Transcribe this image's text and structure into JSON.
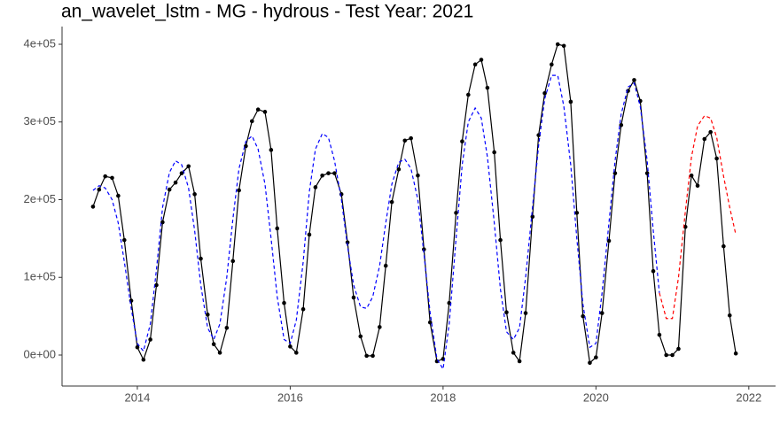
{
  "chart_data": {
    "type": "line",
    "title": "an_wavelet_lstm - MG - hydrous - Test Year: 2021",
    "x": [
      2013.42,
      2013.5,
      2013.58,
      2013.67,
      2013.75,
      2013.83,
      2013.92,
      2014.0,
      2014.08,
      2014.17,
      2014.25,
      2014.33,
      2014.42,
      2014.5,
      2014.58,
      2014.67,
      2014.75,
      2014.83,
      2014.92,
      2015.0,
      2015.08,
      2015.17,
      2015.25,
      2015.33,
      2015.42,
      2015.5,
      2015.58,
      2015.67,
      2015.75,
      2015.83,
      2015.92,
      2016.0,
      2016.08,
      2016.17,
      2016.25,
      2016.33,
      2016.42,
      2016.5,
      2016.58,
      2016.67,
      2016.75,
      2016.83,
      2016.92,
      2017.0,
      2017.08,
      2017.17,
      2017.25,
      2017.33,
      2017.42,
      2017.5,
      2017.58,
      2017.67,
      2017.75,
      2017.83,
      2017.92,
      2018.0,
      2018.08,
      2018.17,
      2018.25,
      2018.33,
      2018.42,
      2018.5,
      2018.58,
      2018.67,
      2018.75,
      2018.83,
      2018.92,
      2019.0,
      2019.08,
      2019.17,
      2019.25,
      2019.33,
      2019.42,
      2019.5,
      2019.58,
      2019.67,
      2019.75,
      2019.83,
      2019.92,
      2020.0,
      2020.08,
      2020.17,
      2020.25,
      2020.33,
      2020.42,
      2020.5,
      2020.58,
      2020.67,
      2020.75,
      2020.83,
      2020.92,
      2021.0,
      2021.08,
      2021.17,
      2021.25,
      2021.33,
      2021.42,
      2021.5,
      2021.58,
      2021.67,
      2021.75,
      2021.83
    ],
    "series": [
      {
        "color": "#000000",
        "linestyle": "solid",
        "markers": true,
        "values": [
          191000,
          213000,
          230000,
          228000,
          205000,
          148000,
          70000,
          10000,
          -6000,
          20000,
          90000,
          171000,
          213000,
          222000,
          234000,
          243000,
          207000,
          124000,
          52000,
          14000,
          3000,
          35000,
          121000,
          212000,
          269000,
          301000,
          316000,
          313000,
          264000,
          163000,
          67000,
          11000,
          3000,
          59000,
          155000,
          216000,
          231000,
          234000,
          234000,
          207000,
          145000,
          74000,
          24000,
          -1000,
          -1000,
          36000,
          115000,
          197000,
          239000,
          276000,
          279000,
          231000,
          136000,
          42000,
          -8000,
          -5000,
          67000,
          183000,
          275000,
          335000,
          374000,
          380000,
          344000,
          261000,
          148000,
          55000,
          3000,
          -8000,
          54000,
          178000,
          283000,
          337000,
          374000,
          400000,
          398000,
          326000,
          183000,
          50000,
          -10000,
          -3000,
          54000,
          147000,
          234000,
          296000,
          340000,
          354000,
          327000,
          234000,
          108000,
          26000,
          0,
          0,
          8000,
          165000,
          231000,
          218000,
          278000,
          287000,
          253000,
          140000,
          51000,
          2000
        ]
      },
      {
        "color": "#0000ff",
        "linestyle": "dashed",
        "markers": false,
        "values": [
          212000,
          218000,
          215000,
          200000,
          170000,
          120000,
          60000,
          15000,
          5000,
          40000,
          110000,
          190000,
          235000,
          250000,
          245000,
          215000,
          160000,
          90000,
          35000,
          20000,
          40000,
          100000,
          175000,
          240000,
          275000,
          282000,
          265000,
          220000,
          150000,
          75000,
          20000,
          15000,
          45000,
          120000,
          210000,
          265000,
          285000,
          280000,
          250000,
          200000,
          140000,
          90000,
          62000,
          60000,
          75000,
          115000,
          170000,
          220000,
          248000,
          252000,
          240000,
          200000,
          130000,
          55000,
          -5000,
          -18000,
          40000,
          150000,
          245000,
          300000,
          318000,
          305000,
          255000,
          170000,
          85000,
          30000,
          20000,
          35000,
          100000,
          190000,
          270000,
          330000,
          360000,
          360000,
          320000,
          245000,
          150000,
          65000,
          10000,
          15000,
          80000,
          170000,
          250000,
          310000,
          345000,
          350000,
          320000,
          250000,
          160000,
          80000,
          null,
          null,
          null,
          null,
          null,
          null,
          null,
          null,
          null,
          null,
          null,
          null
        ]
      },
      {
        "color": "#ff0000",
        "linestyle": "dashed",
        "markers": false,
        "values": [
          null,
          null,
          null,
          null,
          null,
          null,
          null,
          null,
          null,
          null,
          null,
          null,
          null,
          null,
          null,
          null,
          null,
          null,
          null,
          null,
          null,
          null,
          null,
          null,
          null,
          null,
          null,
          null,
          null,
          null,
          null,
          null,
          null,
          null,
          null,
          null,
          null,
          null,
          null,
          null,
          null,
          null,
          null,
          null,
          null,
          null,
          null,
          null,
          null,
          null,
          null,
          null,
          null,
          null,
          null,
          null,
          null,
          null,
          null,
          null,
          null,
          null,
          null,
          null,
          null,
          null,
          null,
          null,
          null,
          null,
          null,
          null,
          null,
          null,
          null,
          null,
          null,
          null,
          null,
          null,
          null,
          null,
          null,
          null,
          null,
          null,
          null,
          null,
          null,
          80000,
          47000,
          47000,
          100000,
          185000,
          255000,
          295000,
          308000,
          305000,
          280000,
          230000,
          190000,
          155000
        ]
      }
    ],
    "xlim": [
      2013.015,
      2022.35
    ],
    "xticks": [
      2014,
      2016,
      2018,
      2020,
      2022
    ],
    "ylim": [
      -39900,
      422800
    ],
    "yticks": [
      {
        "value": 0,
        "label": "0e+00"
      },
      {
        "value": 100000,
        "label": "1e+05"
      },
      {
        "value": 200000,
        "label": "2e+05"
      },
      {
        "value": 300000,
        "label": "3e+05"
      },
      {
        "value": 400000,
        "label": "4e+05"
      }
    ],
    "grid": false
  }
}
